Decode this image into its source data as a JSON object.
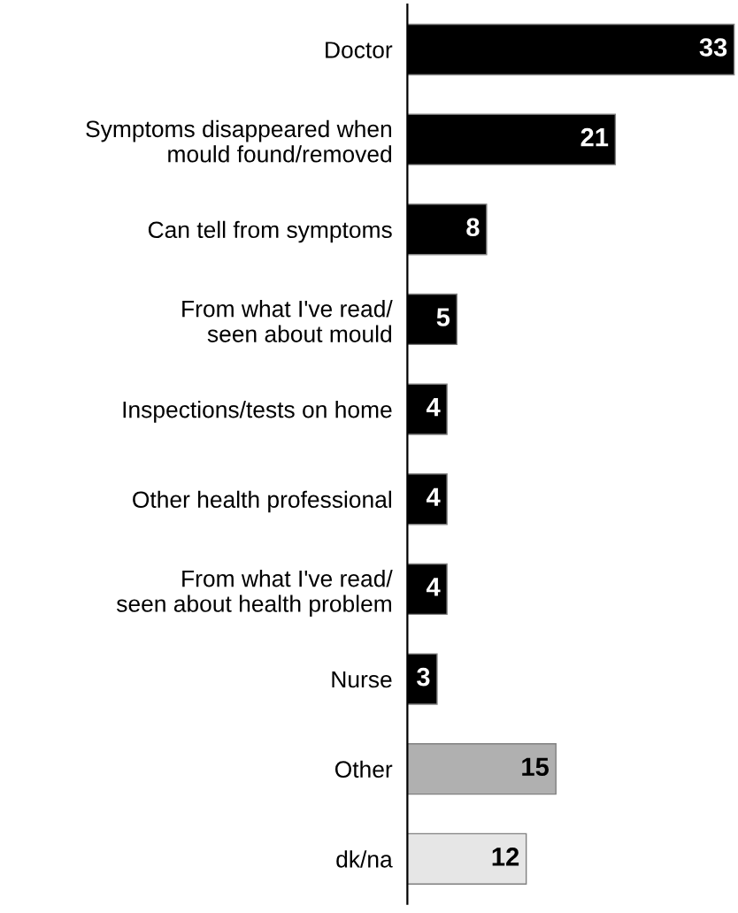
{
  "chart_data": {
    "type": "bar",
    "orientation": "horizontal",
    "data_labels": true,
    "categories": [
      "Doctor",
      "Symptoms disappeared when\nmould found/removed",
      "Can tell from symptoms",
      "From what I've read/\nseen about mould",
      "Inspections/tests on home",
      "Other health professional",
      "From what I've read/\nseen about health problem",
      "Nurse",
      "Other",
      "dk/na"
    ],
    "values": [
      33,
      21,
      8,
      5,
      4,
      4,
      4,
      3,
      15,
      12
    ],
    "colors": [
      "#000000",
      "#000000",
      "#000000",
      "#000000",
      "#000000",
      "#000000",
      "#000000",
      "#000000",
      "#b0b0b0",
      "#e6e6e6"
    ]
  }
}
